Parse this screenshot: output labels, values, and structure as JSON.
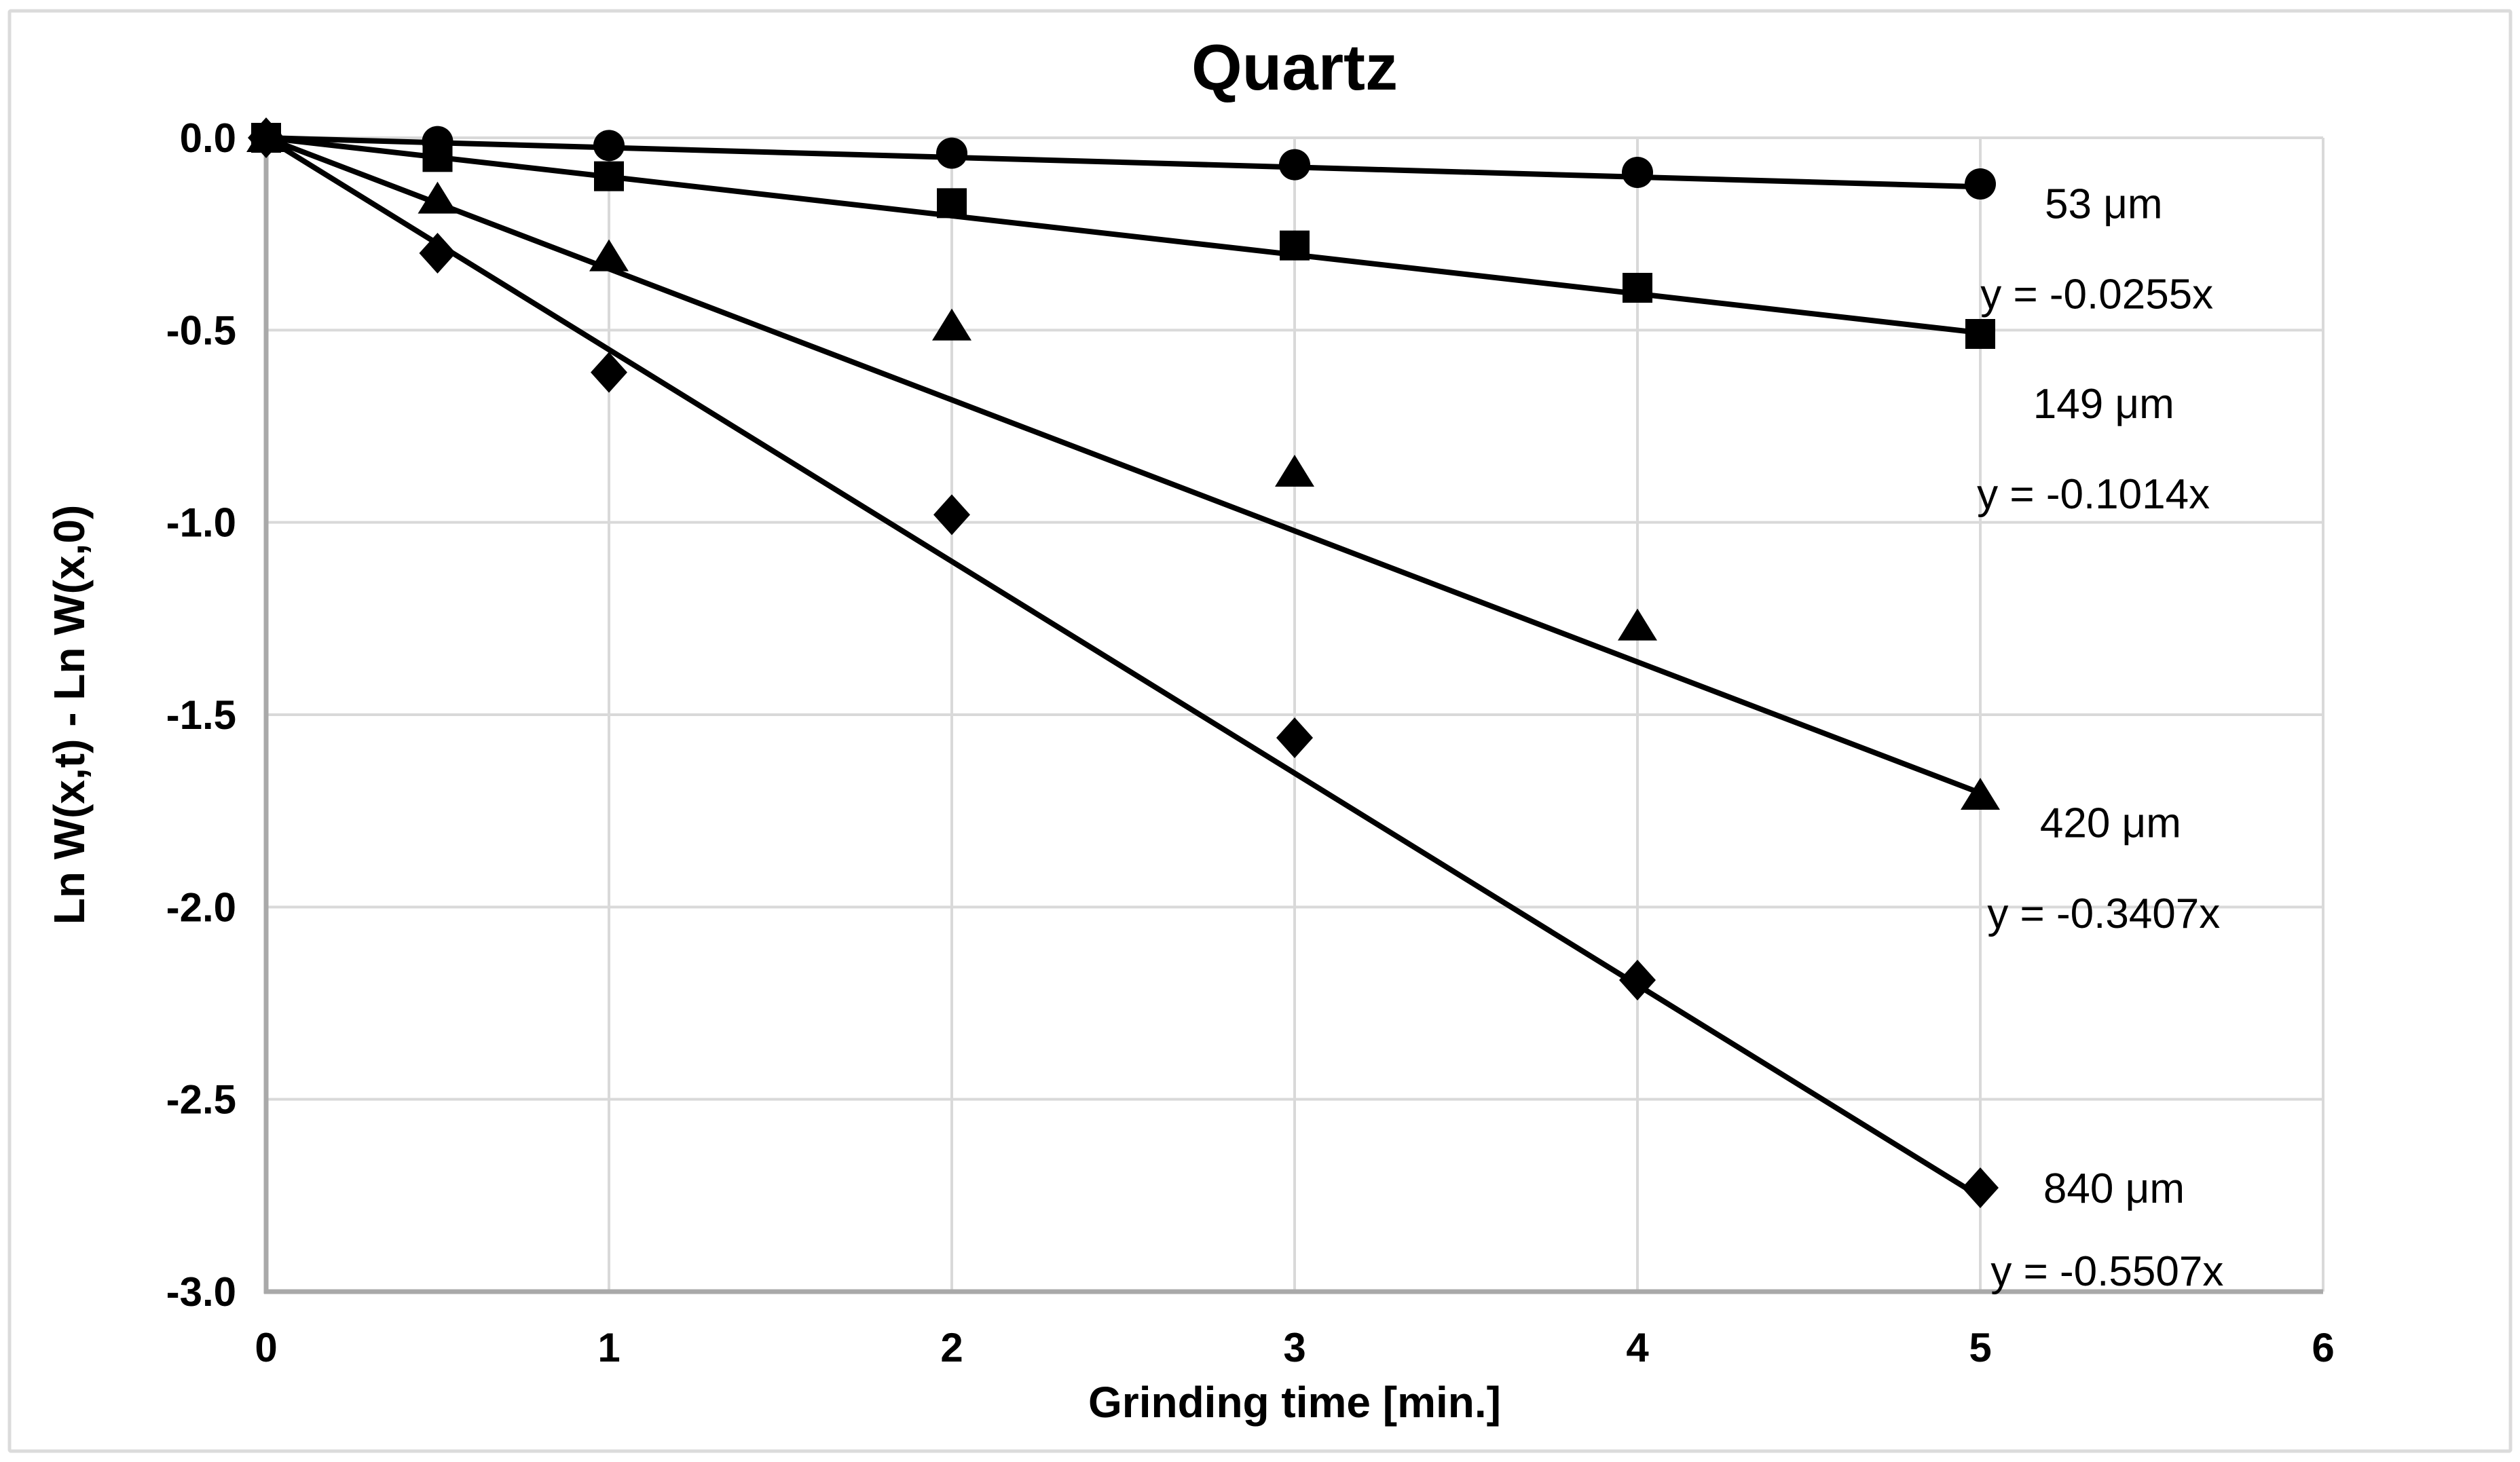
{
  "figure": {
    "title": "Quartz",
    "x_axis_label": "Grinding time [min.]",
    "y_axis_label": "Ln W(x,t) - Ln W(x,0)"
  },
  "colors": {
    "series": "#000000",
    "grid": "#d9d9d9",
    "axis": "#a9a9a9",
    "figure_border": "#dbdbdb",
    "text": "#000000",
    "background": "#ffffff"
  },
  "chart_data": {
    "type": "scatter",
    "title": "Quartz",
    "xlabel": "Grinding time [min.]",
    "ylabel": "Ln W(x,t) - Ln W(x,0)",
    "xlim": [
      0,
      6
    ],
    "ylim": [
      -3,
      0
    ],
    "grid": true,
    "x_ticks": [
      {
        "value": 0,
        "label": "0"
      },
      {
        "value": 1,
        "label": "1"
      },
      {
        "value": 2,
        "label": "2"
      },
      {
        "value": 3,
        "label": "3"
      },
      {
        "value": 4,
        "label": "4"
      },
      {
        "value": 5,
        "label": "5"
      },
      {
        "value": 6,
        "label": "6"
      }
    ],
    "y_ticks": [
      {
        "value": 0,
        "label": "0.0"
      },
      {
        "value": -0.5,
        "label": "-0.5"
      },
      {
        "value": -1.0,
        "label": "-1.0"
      },
      {
        "value": -1.5,
        "label": "-1.5"
      },
      {
        "value": -2.0,
        "label": "-2.0"
      },
      {
        "value": -2.5,
        "label": "-2.5"
      },
      {
        "value": -3.0,
        "label": "-3.0"
      }
    ],
    "x": [
      0,
      0.5,
      1,
      2,
      3,
      4,
      5
    ],
    "series": [
      {
        "name": "53 μm",
        "marker": "circle",
        "equation": "y = -0.0255x",
        "slope": -0.0255,
        "trend_x_range": [
          0,
          5
        ],
        "values": [
          0,
          -0.01,
          -0.02,
          -0.04,
          -0.07,
          -0.09,
          -0.12
        ],
        "label_x": 5.36,
        "label_y": -0.17,
        "eq_x": 5.34,
        "eq_y": -0.405
      },
      {
        "name": "149 μm",
        "marker": "square",
        "equation": "y = -0.1014x",
        "slope": -0.1014,
        "trend_x_range": [
          0,
          5
        ],
        "values": [
          0,
          -0.05,
          -0.1,
          -0.17,
          -0.28,
          -0.39,
          -0.51
        ],
        "label_x": 5.36,
        "label_y": -0.69,
        "eq_x": 5.33,
        "eq_y": -0.925
      },
      {
        "name": "420 μm",
        "marker": "triangle",
        "equation": "y = -0.3407x",
        "slope": -0.3407,
        "trend_x_range": [
          0,
          5
        ],
        "values": [
          0,
          -0.16,
          -0.31,
          -0.49,
          -0.87,
          -1.27,
          -1.71
        ],
        "label_x": 5.38,
        "label_y": -1.78,
        "eq_x": 5.36,
        "eq_y": -2.015
      },
      {
        "name": "840 μm",
        "marker": "diamond",
        "equation": "y = -0.5507x",
        "slope": -0.5507,
        "trend_x_range": [
          0,
          5
        ],
        "values": [
          0,
          -0.3,
          -0.61,
          -0.98,
          -1.56,
          -2.19,
          -2.73
        ],
        "label_x": 5.39,
        "label_y": -2.73,
        "eq_x": 5.37,
        "eq_y": -2.945
      }
    ],
    "legend_position": "right-inline-annotations"
  }
}
